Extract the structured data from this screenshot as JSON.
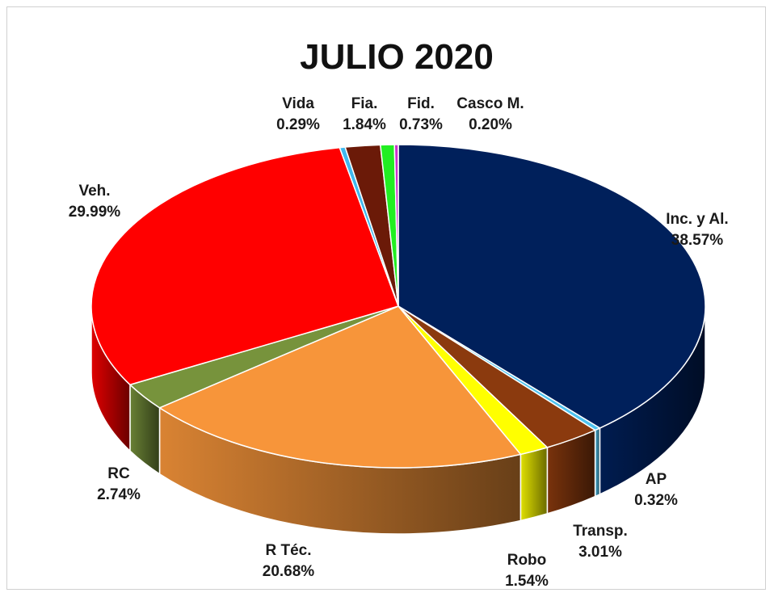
{
  "chart_data": {
    "type": "pie",
    "title": "JULIO 2020",
    "legend": "none",
    "slices": [
      {
        "name": "Inc. y Al.",
        "value": 38.57,
        "label": "38.57%",
        "color": "#00205b"
      },
      {
        "name": "AP",
        "value": 0.32,
        "label": "0.32%",
        "color": "#4fc3ef"
      },
      {
        "name": "Transp.",
        "value": 3.01,
        "label": "3.01%",
        "color": "#8b3a0e"
      },
      {
        "name": "Robo",
        "value": 1.54,
        "label": "1.54%",
        "color": "#ffff00"
      },
      {
        "name": "R Téc.",
        "value": 20.68,
        "label": "20.68%",
        "color": "#f7953a"
      },
      {
        "name": "RC",
        "value": 2.74,
        "label": "2.74%",
        "color": "#77933c"
      },
      {
        "name": "Veh.",
        "value": 29.99,
        "label": "29.99%",
        "color": "#ff0000"
      },
      {
        "name": "Vida",
        "value": 0.29,
        "label": "0.29%",
        "color": "#3fb8ee"
      },
      {
        "name": "Fia.",
        "value": 1.84,
        "label": "1.84%",
        "color": "#6b1a08"
      },
      {
        "name": "Fid.",
        "value": 0.73,
        "label": "0.73%",
        "color": "#22ee22"
      },
      {
        "name": "Casco M.",
        "value": 0.2,
        "label": "0.20%",
        "color": "#cc33cc"
      }
    ]
  }
}
